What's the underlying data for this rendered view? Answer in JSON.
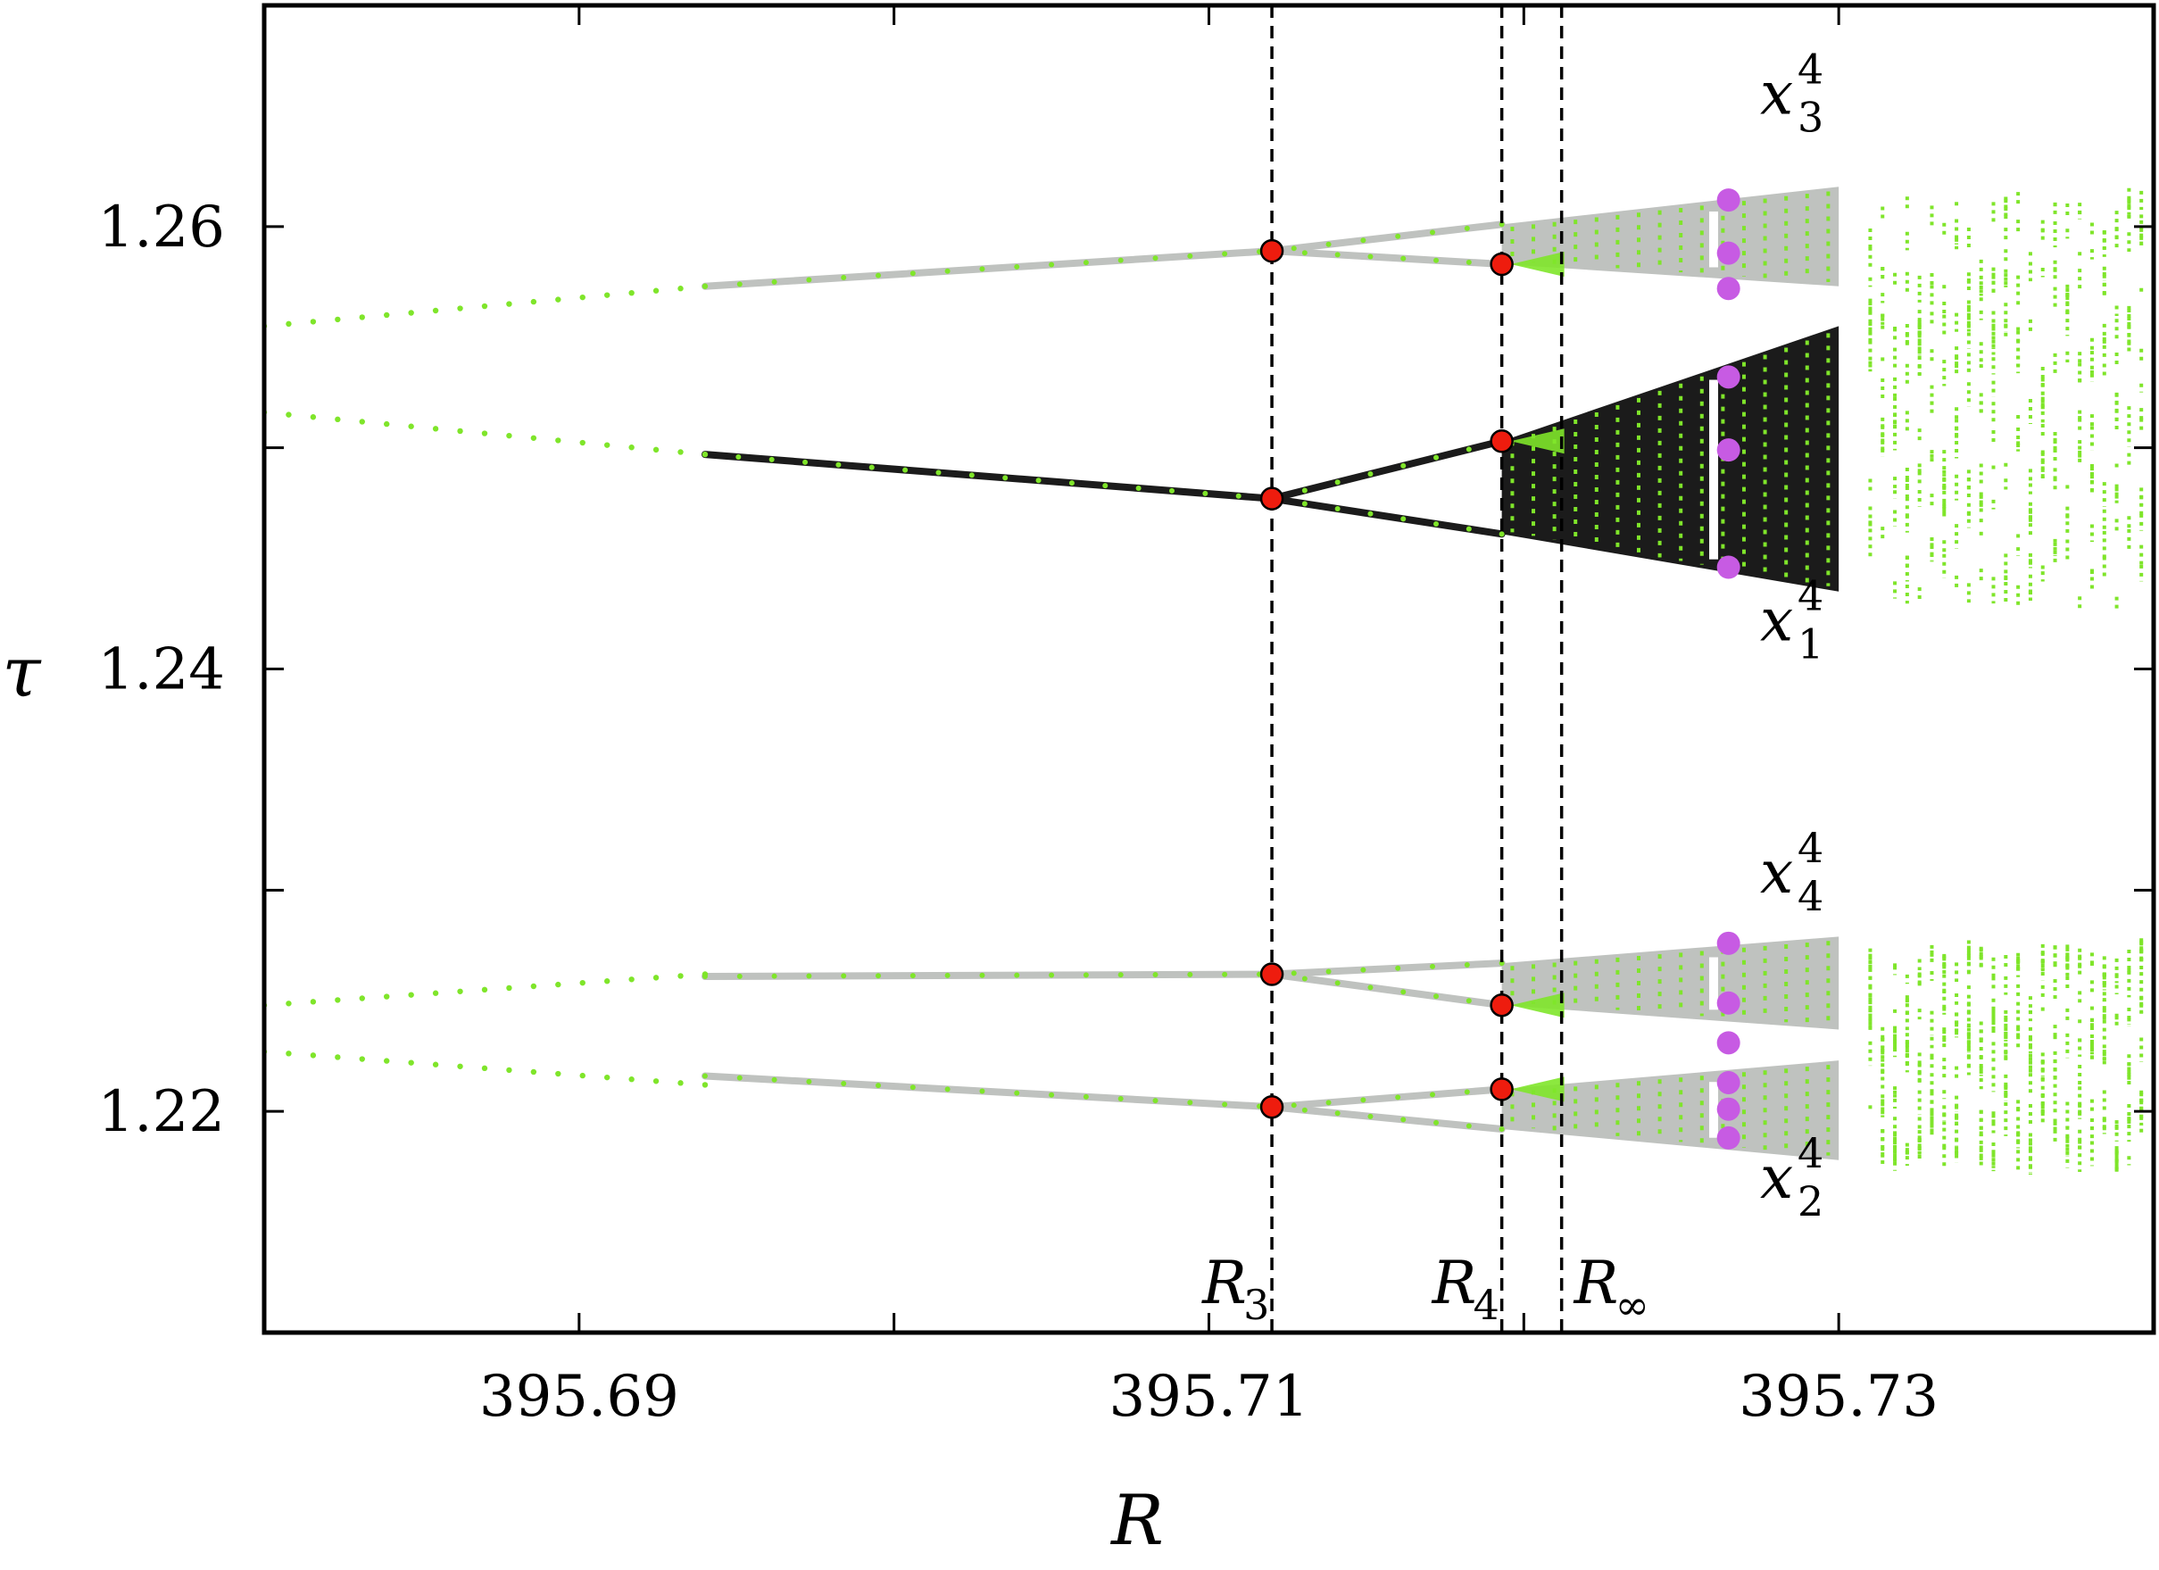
{
  "chart_data": {
    "type": "scatter",
    "title": "",
    "xlabel": "R",
    "ylabel": "τ",
    "xlim": [
      395.68,
      395.74
    ],
    "ylim": [
      1.21,
      1.27
    ],
    "xticks": [
      395.69,
      395.71,
      395.73
    ],
    "xtick_labels": [
      "395.69",
      "395.71",
      "395.73"
    ],
    "yticks": [
      1.22,
      1.24,
      1.26
    ],
    "ytick_labels": [
      "1.22",
      "1.24",
      "1.26"
    ],
    "grid": false,
    "colors": {
      "green_points": "#7fe52a",
      "gray_band": "#bfc2bf",
      "black_band": "#1b1b1b",
      "red_markers": "#ee1c0e",
      "magenta_markers": "#c75be3"
    },
    "vertical_lines": [
      {
        "label": "R",
        "sub": "3",
        "x": 395.712
      },
      {
        "label": "R",
        "sub": "4",
        "x": 395.7193
      },
      {
        "label": "R",
        "sub": "∞",
        "x": 395.7212
      }
    ],
    "branch_labels": [
      {
        "label": "x",
        "sup": "4",
        "sub": "3",
        "x": 395.7275,
        "y": 1.2651
      },
      {
        "label": "x",
        "sup": "4",
        "sub": "1",
        "x": 395.7275,
        "y": 1.2413
      },
      {
        "label": "x",
        "sup": "4",
        "sub": "4",
        "x": 395.7275,
        "y": 1.2299
      },
      {
        "label": "x",
        "sup": "4",
        "sub": "2",
        "x": 395.7275,
        "y": 1.2161
      }
    ],
    "green_lines": [
      {
        "x": [
          395.68,
          395.694
        ],
        "y": [
          1.2555,
          1.2573
        ]
      },
      {
        "x": [
          395.68,
          395.694
        ],
        "y": [
          1.2516,
          1.2497
        ]
      },
      {
        "x": [
          395.68,
          395.694
        ],
        "y": [
          1.2248,
          1.2262
        ]
      },
      {
        "x": [
          395.68,
          395.694
        ],
        "y": [
          1.2227,
          1.2212
        ]
      }
    ],
    "gray_branches": [
      {
        "x": [
          395.694,
          395.712,
          395.7193
        ],
        "y": [
          1.2573,
          1.2589,
          1.2601
        ]
      },
      {
        "x": [
          395.712,
          395.7193
        ],
        "y": [
          1.2589,
          1.2583
        ]
      },
      {
        "x": [
          395.694,
          395.712,
          395.7193
        ],
        "y": [
          1.2261,
          1.2262,
          1.2267
        ]
      },
      {
        "x": [
          395.712,
          395.7193
        ],
        "y": [
          1.2262,
          1.2248
        ]
      },
      {
        "x": [
          395.694,
          395.712,
          395.7193
        ],
        "y": [
          1.2216,
          1.2202,
          1.221
        ]
      },
      {
        "x": [
          395.712,
          395.7193
        ],
        "y": [
          1.2202,
          1.2192
        ]
      }
    ],
    "black_branches": [
      {
        "x": [
          395.694,
          395.712
        ],
        "y": [
          1.2497,
          1.2477
        ]
      },
      {
        "x": [
          395.712,
          395.7193
        ],
        "y": [
          1.2477,
          1.2503
        ]
      },
      {
        "x": [
          395.712,
          395.7193
        ],
        "y": [
          1.2477,
          1.2461
        ]
      }
    ],
    "chaotic_bands": [
      {
        "color": "gray",
        "x": [
          395.7193,
          395.73
        ],
        "top": [
          1.2601,
          1.2618
        ],
        "bottom": [
          1.2583,
          1.2573
        ]
      },
      {
        "color": "black",
        "x": [
          395.7193,
          395.73
        ],
        "top": [
          1.2503,
          1.2555
        ],
        "bottom": [
          1.2461,
          1.2435
        ]
      },
      {
        "color": "gray",
        "x": [
          395.7193,
          395.73
        ],
        "top": [
          1.2267,
          1.2279
        ],
        "bottom": [
          1.2248,
          1.2237
        ]
      },
      {
        "color": "gray",
        "x": [
          395.7193,
          395.73
        ],
        "top": [
          1.221,
          1.2223
        ],
        "bottom": [
          1.2192,
          1.2178
        ]
      }
    ],
    "window_regions": [
      {
        "x": [
          395.731,
          395.74
        ],
        "y": [
          1.243,
          1.262
        ]
      },
      {
        "x": [
          395.731,
          395.74
        ],
        "y": [
          1.2178,
          1.228
        ]
      }
    ],
    "red_markers": [
      {
        "x": 395.712,
        "y": 1.2589
      },
      {
        "x": 395.712,
        "y": 1.2477
      },
      {
        "x": 395.712,
        "y": 1.2262
      },
      {
        "x": 395.712,
        "y": 1.2202
      },
      {
        "x": 395.7193,
        "y": 1.2583
      },
      {
        "x": 395.7193,
        "y": 1.2503
      },
      {
        "x": 395.7193,
        "y": 1.2248
      },
      {
        "x": 395.7193,
        "y": 1.221
      }
    ],
    "magenta_markers": [
      {
        "x": 395.7265,
        "y": 1.2612
      },
      {
        "x": 395.7265,
        "y": 1.2588
      },
      {
        "x": 395.7265,
        "y": 1.2572
      },
      {
        "x": 395.7265,
        "y": 1.2532
      },
      {
        "x": 395.7265,
        "y": 1.2499
      },
      {
        "x": 395.7265,
        "y": 1.2446
      },
      {
        "x": 395.7265,
        "y": 1.2276
      },
      {
        "x": 395.7265,
        "y": 1.2249
      },
      {
        "x": 395.7265,
        "y": 1.2231
      },
      {
        "x": 395.7265,
        "y": 1.2213
      },
      {
        "x": 395.7265,
        "y": 1.2201
      },
      {
        "x": 395.7265,
        "y": 1.2188
      }
    ]
  }
}
